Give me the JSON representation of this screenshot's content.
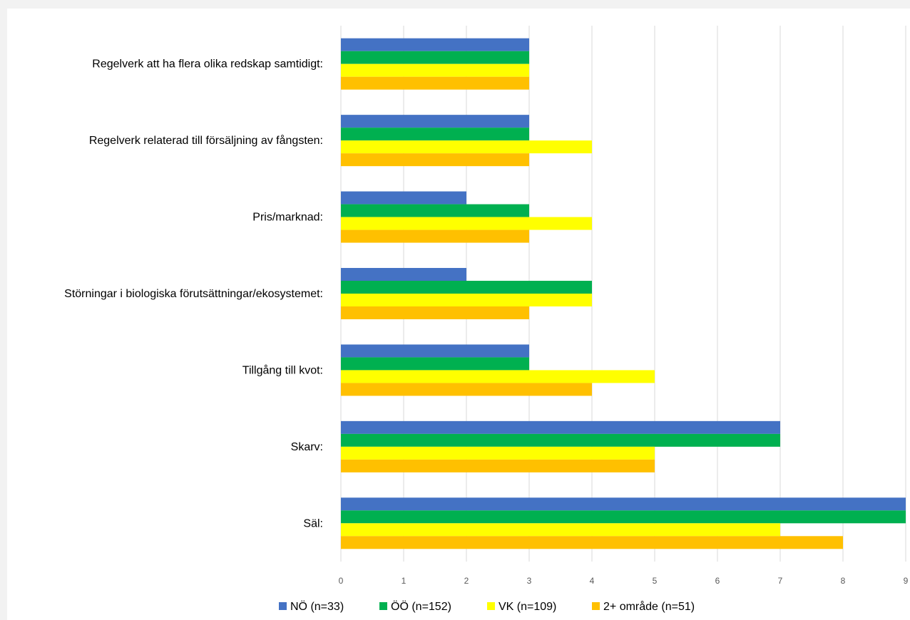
{
  "chart_data": {
    "type": "bar",
    "orientation": "horizontal",
    "categories": [
      "Regelverk att ha flera olika redskap samtidigt:",
      "Regelverk relaterad till försäljning av fångsten:",
      "Pris/marknad:",
      "Störningar i biologiska förutsättningar/ekosystemet:",
      "Tillgång till kvot:",
      "Skarv:",
      "Säl:"
    ],
    "series": [
      {
        "name": "NÖ (n=33)",
        "color": "#4472c4",
        "values": [
          3,
          3,
          2,
          2,
          3,
          7,
          9
        ]
      },
      {
        "name": "ÖÖ (n=152)",
        "color": "#00b050",
        "values": [
          3,
          3,
          3,
          4,
          3,
          7,
          9
        ]
      },
      {
        "name": "VK (n=109)",
        "color": "#ffff00",
        "values": [
          3,
          4,
          4,
          4,
          5,
          5,
          7
        ]
      },
      {
        "name": "2+ område (n=51)",
        "color": "#ffc000",
        "values": [
          3,
          3,
          3,
          3,
          4,
          5,
          8
        ]
      }
    ],
    "xlim": [
      0,
      9
    ],
    "xticks": [
      "0",
      "1",
      "2",
      "3",
      "4",
      "5",
      "6",
      "7",
      "8",
      "9"
    ],
    "grid": "vertical",
    "legend": "bottom",
    "title": "",
    "xlabel": "",
    "ylabel": ""
  }
}
